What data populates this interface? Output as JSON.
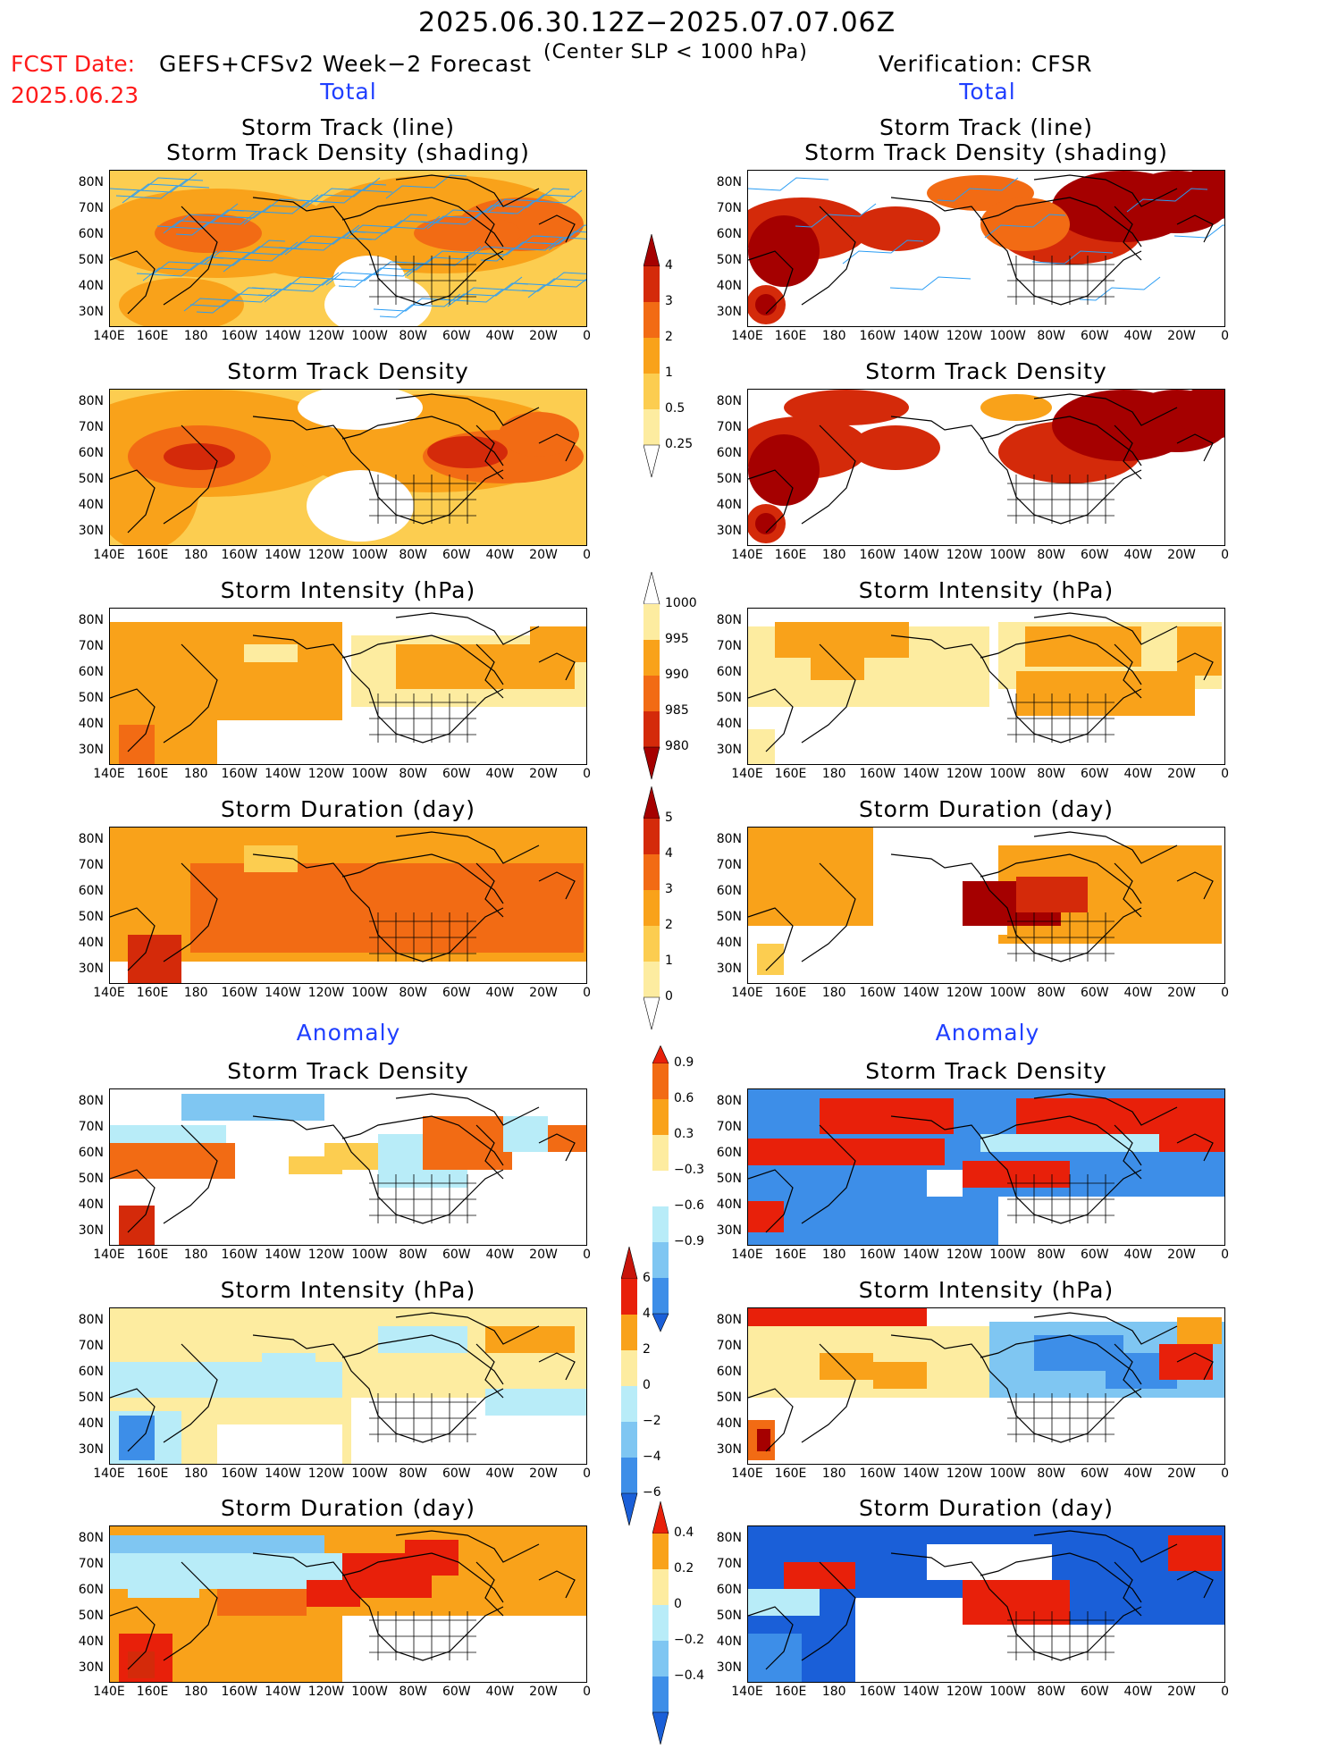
{
  "header": {
    "date_range": "2025.06.30.12Z−2025.07.07.06Z",
    "fcst_label": "FCST Date:",
    "fcst_date": "2025.06.23",
    "model": "GEFS+CFSv2 Week−2 Forecast",
    "criterion": "(Center SLP < 1000 hPa)",
    "verification": "Verification: CFSR"
  },
  "sections": {
    "total_left": "Total",
    "total_right": "Total",
    "anomaly_left": "Anomaly",
    "anomaly_right": "Anomaly"
  },
  "panel_titles": {
    "track_line": "Storm Track (line)",
    "track_density_shading": "Storm Track Density (shading)",
    "track_density": "Storm Track Density",
    "intensity": "Storm Intensity (hPa)",
    "duration": "Storm Duration (day)"
  },
  "axes": {
    "lat_labels": [
      "80N",
      "70N",
      "60N",
      "50N",
      "40N",
      "30N"
    ],
    "lon_labels": [
      "140E",
      "160E",
      "180",
      "160W",
      "140W",
      "120W",
      "100W",
      "80W",
      "60W",
      "40W",
      "20W",
      "0"
    ]
  },
  "colorbars": {
    "track_density_total": {
      "labels": [
        "4",
        "3",
        "2",
        "1",
        "0.5",
        "0.25"
      ],
      "colors": [
        "#a50000",
        "#d42a0a",
        "#f26b14",
        "#f9a21a",
        "#fccd50",
        "#fdeca0",
        "#ffffff"
      ]
    },
    "intensity_total": {
      "labels": [
        "1000",
        "995",
        "990",
        "985",
        "980"
      ],
      "colors": [
        "#ffffff",
        "#fdeca0",
        "#f9a21a",
        "#f26b14",
        "#d42a0a",
        "#a50000"
      ]
    },
    "duration_total": {
      "labels": [
        "5",
        "4",
        "3",
        "2",
        "1",
        "0"
      ],
      "colors": [
        "#a50000",
        "#d42a0a",
        "#f26b14",
        "#f9a21a",
        "#fccd50",
        "#fdeca0",
        "#ffffff"
      ]
    },
    "track_density_anom": {
      "labels": [
        "0.9",
        "0.6",
        "0.3",
        "−0.3",
        "−0.6",
        "−0.9"
      ],
      "colors": [
        "#e8200a",
        "#f26b14",
        "#f9a21a",
        "#fdeca0",
        "#ffffff",
        "#b8ecf8",
        "#7fc6f2",
        "#3d8ee8",
        "#1a5fd8"
      ]
    },
    "intensity_anom": {
      "labels": [
        "6",
        "4",
        "2",
        "0",
        "−2",
        "−4",
        "−6"
      ],
      "colors": [
        "#c8140a",
        "#e8200a",
        "#f9a21a",
        "#fdeca0",
        "#b8ecf8",
        "#7fc6f2",
        "#3d8ee8",
        "#1a5fd8"
      ]
    },
    "duration_anom": {
      "labels": [
        "0.4",
        "0.2",
        "0",
        "−0.2",
        "−0.4"
      ],
      "colors": [
        "#e8200a",
        "#f9a21a",
        "#fdeca0",
        "#b8ecf8",
        "#7fc6f2",
        "#3d8ee8",
        "#1a5fd8"
      ]
    }
  },
  "colors": {
    "red_text": "#ff1a1a",
    "blue_text": "#1f3fff",
    "track_line": "#2a9df4"
  }
}
